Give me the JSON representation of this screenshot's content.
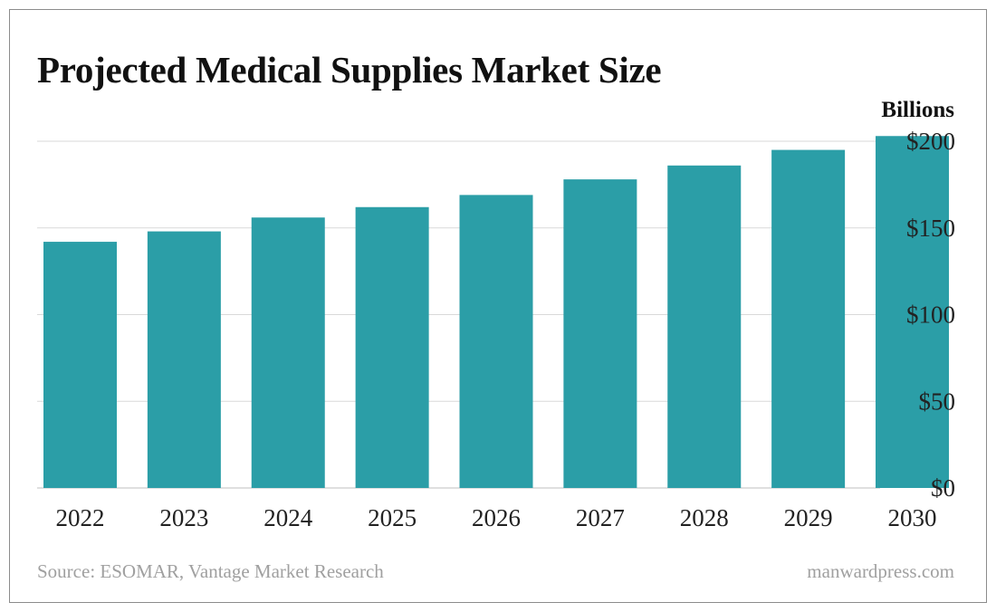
{
  "chart_data": {
    "type": "bar",
    "title": "Projected Medical Supplies Market Size",
    "unit_label": "Billions",
    "categories": [
      "2022",
      "2023",
      "2024",
      "2025",
      "2026",
      "2027",
      "2028",
      "2029",
      "2030"
    ],
    "values": [
      142,
      148,
      156,
      162,
      169,
      178,
      186,
      195,
      203
    ],
    "ylim": [
      0,
      200
    ],
    "yticks": [
      0,
      50,
      100,
      150,
      200
    ],
    "ytick_labels": [
      "$0",
      "$50",
      "$100",
      "$150",
      "$200"
    ],
    "y_axis_side": "right",
    "grid": true,
    "bar_color": "#2b9ea7",
    "grid_color": "#d9d9d9"
  },
  "footer": {
    "source": "Source: ESOMAR, Vantage Market Research",
    "site": "manwardpress.com"
  }
}
